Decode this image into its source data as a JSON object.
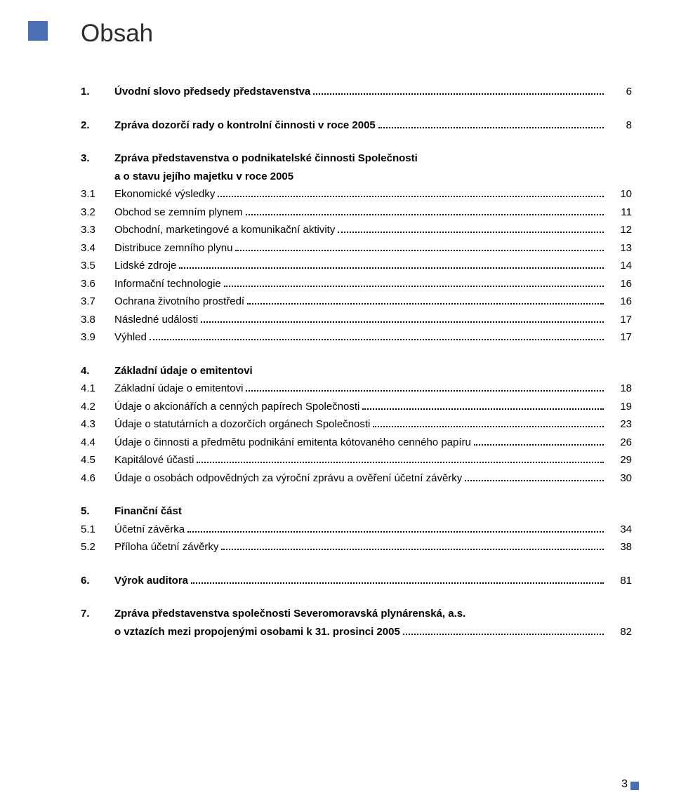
{
  "colors": {
    "accent": "#4b6fb3",
    "text": "#000000",
    "title": "#2d2d2d",
    "background": "#ffffff"
  },
  "typography": {
    "title_fontsize": 35,
    "body_fontsize": 15,
    "font_family": "Verdana"
  },
  "title": "Obsah",
  "page_number": "3",
  "groups": [
    {
      "items": [
        {
          "num": "1.",
          "label": "Úvodní slovo předsedy představenstva",
          "page": "6",
          "bold": true,
          "num_bold": true
        }
      ]
    },
    {
      "items": [
        {
          "num": "2.",
          "label": "Zpráva dozorčí rady o kontrolní činnosti v roce 2005",
          "page": "8",
          "bold": true,
          "num_bold": true
        }
      ]
    },
    {
      "items": [
        {
          "num": "3.",
          "label": "Zpráva představenstva o podnikatelské činnosti Společnosti",
          "page": "",
          "bold": true,
          "num_bold": true,
          "no_page": true
        },
        {
          "num": "",
          "label": "a o stavu jejího majetku v roce 2005",
          "page": "",
          "bold": true,
          "num_bold": false,
          "no_page": true
        },
        {
          "num": "3.1",
          "label": "Ekonomické výsledky",
          "page": "10",
          "bold": false,
          "num_bold": false
        },
        {
          "num": "3.2",
          "label": "Obchod se zemním plynem",
          "page": "11",
          "bold": false,
          "num_bold": false
        },
        {
          "num": "3.3",
          "label": "Obchodní, marketingové a komunikační aktivity",
          "page": "12",
          "bold": false,
          "num_bold": false
        },
        {
          "num": "3.4",
          "label": "Distribuce zemního plynu",
          "page": "13",
          "bold": false,
          "num_bold": false
        },
        {
          "num": "3.5",
          "label": "Lidské zdroje",
          "page": "14",
          "bold": false,
          "num_bold": false
        },
        {
          "num": "3.6",
          "label": "Informační technologie",
          "page": "16",
          "bold": false,
          "num_bold": false
        },
        {
          "num": "3.7",
          "label": "Ochrana životního prostředí",
          "page": "16",
          "bold": false,
          "num_bold": false
        },
        {
          "num": "3.8",
          "label": "Následné události",
          "page": "17",
          "bold": false,
          "num_bold": false
        },
        {
          "num": "3.9",
          "label": "Výhled",
          "page": "17",
          "bold": false,
          "num_bold": false
        }
      ]
    },
    {
      "items": [
        {
          "num": "4.",
          "label": "Základní údaje o emitentovi",
          "page": "",
          "bold": true,
          "num_bold": true,
          "no_page": true
        },
        {
          "num": "4.1",
          "label": "Základní údaje o emitentovi",
          "page": "18",
          "bold": false,
          "num_bold": false
        },
        {
          "num": "4.2",
          "label": "Údaje o akcionářích a cenných papírech Společnosti",
          "page": "19",
          "bold": false,
          "num_bold": false
        },
        {
          "num": "4.3",
          "label": "Údaje o statutárních a dozorčích orgánech Společnosti",
          "page": "23",
          "bold": false,
          "num_bold": false
        },
        {
          "num": "4.4",
          "label": "Údaje o činnosti a předmětu podnikání emitenta kótovaného cenného papíru",
          "page": "26",
          "bold": false,
          "num_bold": false
        },
        {
          "num": "4.5",
          "label": "Kapitálové účasti",
          "page": "29",
          "bold": false,
          "num_bold": false
        },
        {
          "num": "4.6",
          "label": "Údaje o osobách odpovědných za výroční zprávu a ověření účetní závěrky",
          "page": "30",
          "bold": false,
          "num_bold": false
        }
      ]
    },
    {
      "items": [
        {
          "num": "5.",
          "label": "Finanční část",
          "page": "",
          "bold": true,
          "num_bold": true,
          "no_page": true
        },
        {
          "num": "5.1",
          "label": "Účetní závěrka",
          "page": "34",
          "bold": false,
          "num_bold": false
        },
        {
          "num": "5.2",
          "label": "Příloha účetní závěrky",
          "page": "38",
          "bold": false,
          "num_bold": false
        }
      ]
    },
    {
      "items": [
        {
          "num": "6.",
          "label": "Výrok auditora",
          "page": "81",
          "bold": true,
          "num_bold": true
        }
      ]
    },
    {
      "items": [
        {
          "num": "7.",
          "label": "Zpráva představenstva společnosti Severomoravská plynárenská, a.s.",
          "page": "",
          "bold": true,
          "num_bold": true,
          "no_page": true
        },
        {
          "num": "",
          "label": "o vztazích mezi propojenými osobami k 31. prosinci 2005",
          "page": "82",
          "bold": true,
          "num_bold": false
        }
      ]
    }
  ]
}
